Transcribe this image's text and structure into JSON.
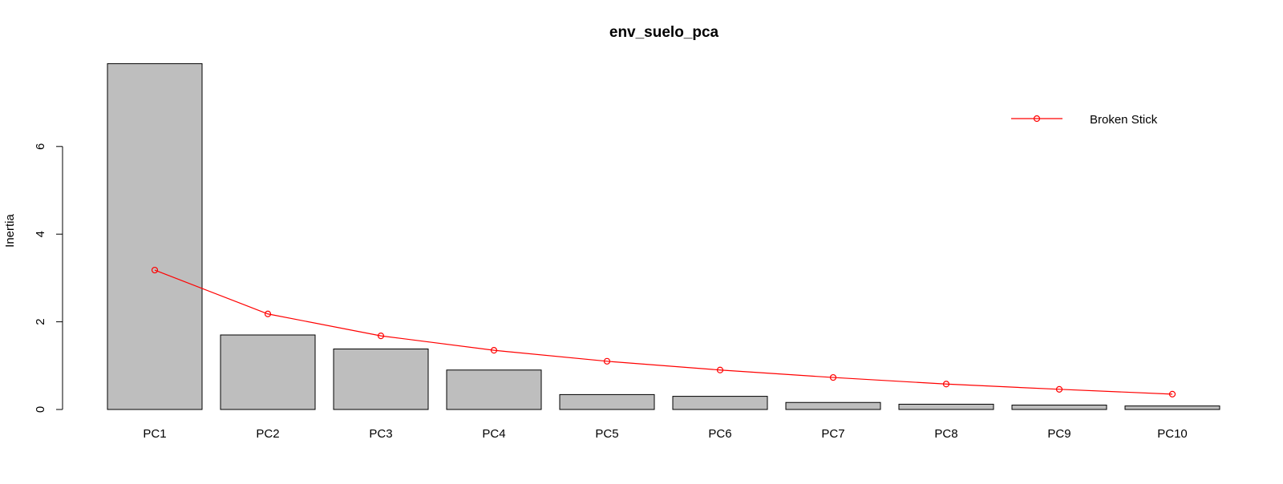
{
  "chart_data": {
    "type": "bar",
    "title": "env_suelo_pca",
    "xlabel": "",
    "ylabel": "Inertia",
    "ylim": [
      0,
      8
    ],
    "yticks": [
      0,
      2,
      4,
      6
    ],
    "categories": [
      "PC1",
      "PC2",
      "PC3",
      "PC4",
      "PC5",
      "PC6",
      "PC7",
      "PC8",
      "PC9",
      "PC10"
    ],
    "series": [
      {
        "values": [
          7.89,
          1.7,
          1.38,
          0.9,
          0.34,
          0.3,
          0.16,
          0.12,
          0.1,
          0.08
        ],
        "color": "#bebebe"
      },
      {
        "name": "Broken Stick",
        "type": "line",
        "values": [
          3.18,
          2.18,
          1.68,
          1.35,
          1.1,
          0.9,
          0.73,
          0.58,
          0.46,
          0.35
        ],
        "color": "#ff0000"
      }
    ],
    "legend": {
      "position": "top-right",
      "entries": [
        "Broken Stick"
      ]
    },
    "grid": false
  }
}
